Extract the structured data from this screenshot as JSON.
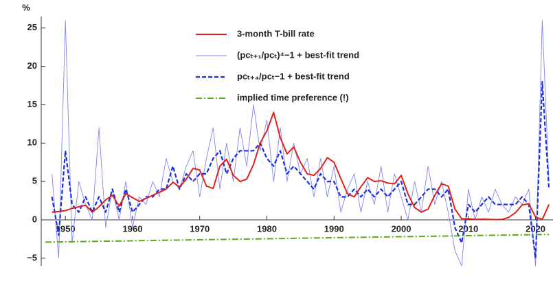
{
  "chart_data": {
    "type": "line",
    "y_label": "%",
    "xlim": [
      1946.4,
      2022.6
    ],
    "ylim": [
      -6,
      26.5
    ],
    "xticks": [
      1950,
      1960,
      1970,
      1980,
      1990,
      2000,
      2010,
      2020
    ],
    "yticks": [
      {
        "value": -5,
        "label": "−5"
      },
      0,
      5,
      10,
      15,
      20,
      25
    ],
    "x": [
      1948,
      1949,
      1950,
      1951,
      1952,
      1953,
      1954,
      1955,
      1956,
      1957,
      1958,
      1959,
      1960,
      1961,
      1962,
      1963,
      1964,
      1965,
      1966,
      1967,
      1968,
      1969,
      1970,
      1971,
      1972,
      1973,
      1974,
      1975,
      1976,
      1977,
      1978,
      1979,
      1980,
      1981,
      1982,
      1983,
      1984,
      1985,
      1986,
      1987,
      1988,
      1989,
      1990,
      1991,
      1992,
      1993,
      1994,
      1995,
      1996,
      1997,
      1998,
      1999,
      2000,
      2001,
      2002,
      2003,
      2004,
      2005,
      2006,
      2007,
      2008,
      2009,
      2010,
      2011,
      2012,
      2013,
      2014,
      2015,
      2016,
      2017,
      2018,
      2019,
      2020,
      2021,
      2022
    ],
    "series": [
      {
        "name": "3-month T-bill rate",
        "color": "#e0201b",
        "style": "solid",
        "width": 2,
        "values": [
          1.0,
          1.1,
          1.2,
          1.5,
          1.7,
          1.9,
          1.0,
          1.7,
          2.6,
          3.2,
          1.8,
          3.4,
          2.9,
          2.4,
          2.8,
          3.2,
          3.6,
          4.0,
          4.9,
          4.3,
          5.3,
          6.7,
          6.5,
          4.4,
          4.1,
          7.0,
          7.9,
          5.8,
          5.0,
          5.3,
          7.2,
          10.0,
          11.6,
          14.0,
          10.7,
          8.6,
          9.5,
          7.5,
          6.0,
          5.8,
          6.7,
          8.1,
          7.5,
          5.4,
          3.4,
          3.0,
          4.3,
          5.5,
          5.0,
          5.1,
          4.8,
          4.7,
          5.8,
          3.4,
          1.6,
          1.0,
          1.4,
          3.2,
          4.7,
          4.4,
          1.4,
          0.15,
          0.14,
          0.05,
          0.09,
          0.06,
          0.03,
          0.05,
          0.32,
          0.93,
          1.94,
          2.1,
          0.37,
          0.05,
          2.0
        ]
      },
      {
        "name": "(pcₜ₊₁/pcₜ)⁴−1 + best-fit trend",
        "color": "#7f86f0",
        "style": "solid",
        "width": 0.9,
        "values": [
          6,
          -5,
          26,
          -3,
          5,
          2,
          0,
          12,
          -1,
          4,
          0,
          5,
          -1,
          3,
          2,
          5,
          3,
          8,
          5,
          4,
          7,
          9,
          3,
          8,
          12,
          4,
          10,
          5,
          12,
          7,
          15,
          9,
          13,
          5,
          12,
          5,
          10,
          6,
          8,
          3,
          8,
          3,
          7,
          1,
          4,
          6,
          1,
          5,
          2,
          7,
          1,
          6,
          3,
          0,
          5,
          1,
          7,
          2,
          5,
          1,
          -4,
          -6,
          4,
          0,
          3,
          1,
          4,
          2,
          1,
          3,
          2,
          4,
          -6,
          26,
          5
        ]
      },
      {
        "name": "pcₜ₊₄/pcₜ−1 + best-fit trend",
        "color": "#1a2fe0",
        "style": "dashed",
        "width": 2.2,
        "values": [
          3,
          -2,
          9,
          2,
          1,
          3,
          1,
          3,
          1,
          4,
          1,
          4,
          1,
          2,
          3,
          3,
          4,
          4,
          7,
          4,
          6,
          5,
          6,
          6,
          8,
          9,
          6,
          8,
          9,
          9,
          9,
          10,
          8,
          7,
          9,
          6,
          7,
          6,
          5,
          4,
          6,
          5,
          5,
          3,
          3,
          4,
          3,
          4,
          3,
          4,
          3,
          4,
          5,
          2,
          2,
          3,
          4,
          4,
          3,
          4,
          -1,
          -3,
          2,
          1,
          2,
          3,
          2,
          2,
          2,
          2,
          3,
          2,
          -5,
          18,
          4
        ]
      },
      {
        "name": "implied time preference (!)",
        "color": "#5aaa1a",
        "style": "dashdot",
        "width": 2,
        "x": [
          1947,
          2022
        ],
        "values": [
          -2.9,
          -1.9
        ]
      }
    ]
  }
}
